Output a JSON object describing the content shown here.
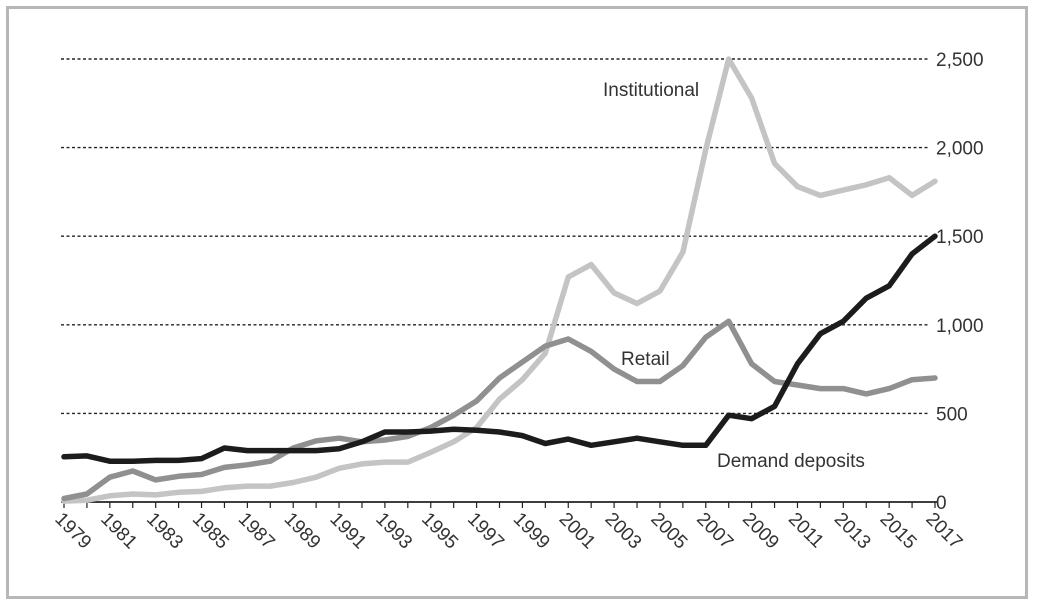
{
  "chart_data": {
    "type": "line",
    "title": "",
    "xlabel": "",
    "ylabel": "",
    "x": [
      1979,
      1980,
      1981,
      1982,
      1983,
      1984,
      1985,
      1986,
      1987,
      1988,
      1989,
      1990,
      1991,
      1992,
      1993,
      1994,
      1995,
      1996,
      1997,
      1998,
      1999,
      2000,
      2001,
      2002,
      2003,
      2004,
      2005,
      2006,
      2007,
      2008,
      2009,
      2010,
      2011,
      2012,
      2013,
      2014,
      2015,
      2016,
      2017
    ],
    "x_tick_labels": [
      "1979",
      "1981",
      "1983",
      "1985",
      "1987",
      "1989",
      "1991",
      "1993",
      "1995",
      "1997",
      "1999",
      "2001",
      "2003",
      "2005",
      "2007",
      "2009",
      "2011",
      "2013",
      "2015",
      "2017"
    ],
    "y_tick_values": [
      0,
      500,
      1000,
      1500,
      2000,
      2500
    ],
    "y_tick_labels": [
      "0",
      "500",
      "1,000",
      "1,500",
      "2,000",
      "2,500"
    ],
    "ylim": [
      0,
      2500
    ],
    "y_axis_side": "right",
    "grid": "horizontal dashed",
    "series": [
      {
        "name": "Institutional",
        "color": "#c4c4c4",
        "values": [
          5,
          10,
          35,
          45,
          40,
          55,
          60,
          80,
          90,
          90,
          110,
          140,
          190,
          215,
          225,
          225,
          280,
          340,
          420,
          580,
          690,
          840,
          1270,
          1340,
          1180,
          1120,
          1190,
          1410,
          1990,
          2500,
          2280,
          1910,
          1780,
          1730,
          1760,
          1790,
          1830,
          1730,
          1810
        ]
      },
      {
        "name": "Retail",
        "color": "#909090",
        "values": [
          20,
          45,
          140,
          175,
          125,
          145,
          155,
          195,
          210,
          230,
          305,
          345,
          360,
          340,
          350,
          370,
          420,
          490,
          570,
          700,
          790,
          880,
          920,
          850,
          750,
          680,
          680,
          770,
          930,
          1020,
          780,
          680,
          660,
          640,
          640,
          610,
          640,
          690,
          700
        ]
      },
      {
        "name": "Demand deposits",
        "color": "#1c1c1c",
        "values": [
          255,
          260,
          230,
          230,
          235,
          235,
          245,
          305,
          290,
          290,
          290,
          290,
          300,
          340,
          395,
          395,
          400,
          410,
          405,
          395,
          375,
          330,
          355,
          320,
          340,
          360,
          340,
          320,
          320,
          490,
          470,
          540,
          780,
          950,
          1020,
          1150,
          1220,
          1400,
          1500
        ]
      }
    ]
  }
}
